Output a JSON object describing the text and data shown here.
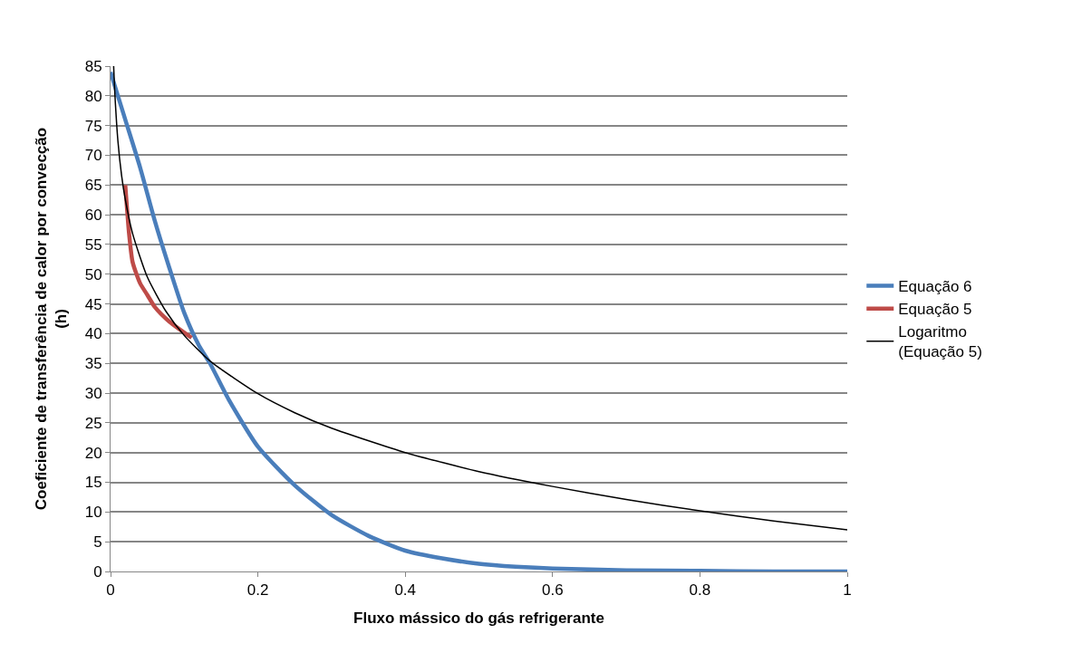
{
  "chart_data": {
    "type": "line",
    "xlabel": "Fluxo mássico do gás refrigerante",
    "ylabel": "Coeficiente de transferência de calor por convecção\n(h)",
    "xlim": [
      0,
      1
    ],
    "xticks": [
      0,
      0.2,
      0.4,
      0.6,
      0.8,
      1
    ],
    "ylim": [
      0,
      85
    ],
    "yticks": [
      0,
      5,
      10,
      15,
      20,
      25,
      30,
      35,
      40,
      45,
      50,
      55,
      60,
      65,
      70,
      75,
      80,
      85
    ],
    "grid": "y",
    "legend": "right",
    "marker": "none",
    "series": [
      {
        "name": "Equação 6",
        "color": "#4a7ebb",
        "x": [
          0,
          0.02,
          0.04,
          0.06,
          0.08,
          0.1,
          0.12,
          0.135,
          0.16,
          0.2,
          0.25,
          0.3,
          0.35,
          0.4,
          0.45,
          0.5,
          0.55,
          0.6,
          0.7,
          0.8,
          0.9,
          1
        ],
        "values": [
          84,
          76,
          68,
          59,
          51,
          43.5,
          38,
          35,
          29,
          21,
          14.5,
          9.5,
          6,
          3.5,
          2.2,
          1.3,
          0.8,
          0.5,
          0.2,
          0.1,
          0,
          0
        ]
      },
      {
        "name": "Equação 5",
        "color": "#be4b48",
        "x": [
          0.02,
          0.025,
          0.03,
          0.04,
          0.05,
          0.06,
          0.08,
          0.11
        ],
        "values": [
          65,
          57,
          52,
          48.5,
          46.5,
          44.5,
          42,
          39.3
        ]
      },
      {
        "name": "Logaritmo\n(Equação 5)",
        "color": "#000000",
        "x": [
          0.0042,
          0.006,
          0.01,
          0.015,
          0.02,
          0.03,
          0.05,
          0.075,
          0.1,
          0.135,
          0.2,
          0.25,
          0.3,
          0.4,
          0.5,
          0.6,
          0.7,
          0.8,
          0.9,
          1
        ],
        "values": [
          85,
          80,
          72.4,
          66.6,
          62.6,
          56.8,
          49.5,
          43.8,
          39.7,
          35.4,
          29.9,
          26.7,
          24.1,
          20,
          16.8,
          14.3,
          12.1,
          10.2,
          8.5,
          7
        ]
      }
    ]
  }
}
